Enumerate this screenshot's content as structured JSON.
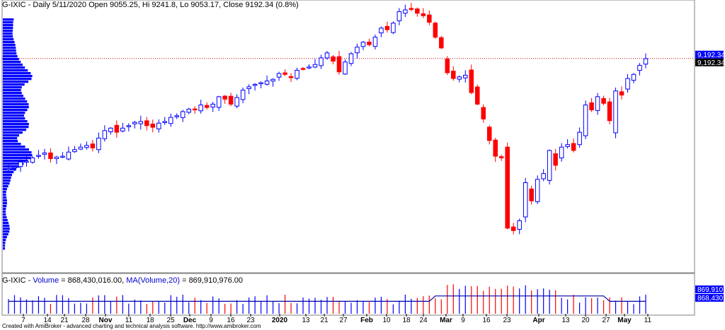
{
  "price_title": "G-IXIC - Daily 5/11/2020 Open 9055.25, Hi 9241.8, Lo 9053.17, Close 9192.34 (0.8%)",
  "volume_title": {
    "prefix": "G-IXIC - ",
    "volume_label": "Volume",
    "volume_value": " = 868,430,016.00, ",
    "ma_label": "MA(Volume,20)",
    "ma_value": " = 869,910,976.00"
  },
  "footer": "Created with AmiBroker - advanced charting and technical analysis software. http://www.amibroker.com",
  "colors": {
    "up": "#0000ff",
    "down": "#ff0000",
    "ma": "#0000aa",
    "grid": "#c0c0c0",
    "price_line": "#cc0000"
  },
  "chart_data": [
    {
      "type": "candlestick",
      "series": [
        {
          "name": "G-IXIC"
        }
      ],
      "last_close_label": "9,192.34",
      "last_close": 9192.34,
      "y_range": [
        6600,
        9900
      ],
      "x_tick_labels": [
        "7",
        "14",
        "21",
        "28",
        "Nov",
        "11",
        "18",
        "25",
        "Dec",
        "9",
        "16",
        "23",
        "2020",
        "13",
        "21",
        "27",
        "Feb",
        "10",
        "18",
        "24",
        "Mar",
        "9",
        "16",
        "23",
        "Apr",
        "13",
        "20",
        "27",
        "May",
        "11"
      ],
      "major_ticks": [
        "Nov",
        "Dec",
        "2020",
        "Feb",
        "Mar",
        "Apr",
        "May"
      ],
      "closes": [
        7860,
        7880,
        7940,
        7950,
        7990,
        8020,
        8050,
        7980,
        8000,
        8010,
        8060,
        8090,
        8120,
        8140,
        8110,
        8230,
        8320,
        8350,
        8300,
        8350,
        8380,
        8420,
        8430,
        8380,
        8360,
        8410,
        8430,
        8480,
        8500,
        8550,
        8580,
        8570,
        8630,
        8600,
        8640,
        8730,
        8700,
        8640,
        8720,
        8810,
        8850,
        8880,
        8900,
        8920,
        8940,
        9010,
        9000,
        8960,
        9050,
        9070,
        9090,
        9120,
        9200,
        9260,
        9160,
        9030,
        9150,
        9250,
        9330,
        9390,
        9360,
        9450,
        9560,
        9540,
        9620,
        9760,
        9780,
        9790,
        9740,
        9710,
        9630,
        9450,
        9320,
        9020,
        8950,
        8970,
        8990,
        8780,
        8640,
        8460,
        8200,
        8010,
        7990,
        7140,
        7110,
        7230,
        7690,
        7470,
        7730,
        7800,
        8080,
        7900,
        8120,
        8150,
        8080,
        8300,
        8630,
        8570,
        8730,
        8650,
        8440,
        8800,
        8750,
        8950,
        9000,
        9110,
        9190
      ],
      "volume": {
        "label": "Volume",
        "last": 868430016.0,
        "ma_label": "MA(Volume,20)",
        "ma_last": 869910976.0,
        "last_label": "868,430,...",
        "ma_last_label": "869,910,..."
      }
    }
  ]
}
